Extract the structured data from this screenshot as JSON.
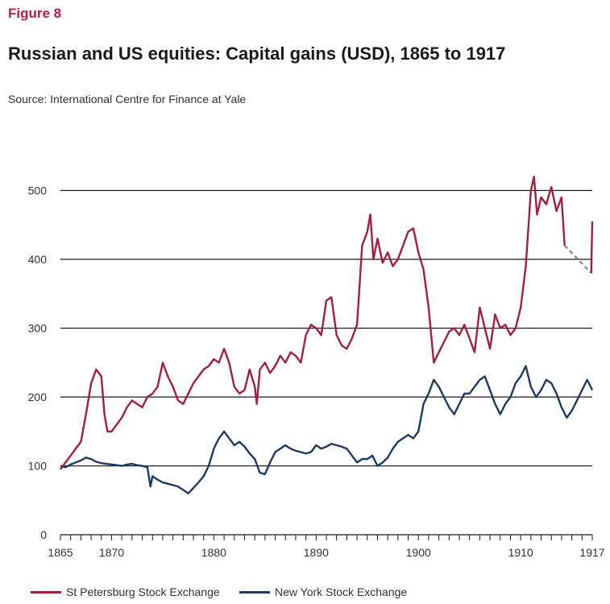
{
  "figure_label": "Figure 8",
  "title": "Russian and US equities: Capital gains (USD), 1865 to 1917",
  "source": "Source: International Centre for Finance at Yale",
  "colors": {
    "st_petersburg": "#a51f3c",
    "new_york": "#1d3a63",
    "gap": "#8a8a8a",
    "grid": "#1a1a1a"
  },
  "chart_data": {
    "type": "line",
    "xlim": [
      1865,
      1917
    ],
    "ylim": [
      0,
      550
    ],
    "y_ticks": [
      0,
      100,
      200,
      300,
      400,
      500
    ],
    "x_tick_labels": [
      "1865",
      "1870",
      "1880",
      "1890",
      "1900",
      "1910",
      "1917"
    ],
    "x_tick_values": [
      1865,
      1870,
      1880,
      1890,
      1900,
      1910,
      1917
    ],
    "grid": "horizontal",
    "legend_position": "bottom",
    "series": [
      {
        "name": "St Petersburg Stock Exchange",
        "x": [
          1865.0,
          1865.5,
          1866.0,
          1866.5,
          1867.0,
          1867.5,
          1868.0,
          1868.5,
          1869.0,
          1869.3,
          1869.6,
          1870.0,
          1870.5,
          1871.0,
          1871.5,
          1872.0,
          1872.5,
          1873.0,
          1873.5,
          1874.0,
          1874.5,
          1875.0,
          1875.5,
          1876.0,
          1876.5,
          1877.0,
          1877.5,
          1878.0,
          1878.5,
          1879.0,
          1879.5,
          1880.0,
          1880.5,
          1881.0,
          1881.5,
          1882.0,
          1882.5,
          1883.0,
          1883.5,
          1884.0,
          1884.2,
          1884.5,
          1885.0,
          1885.5,
          1886.0,
          1886.5,
          1887.0,
          1887.5,
          1888.0,
          1888.5,
          1889.0,
          1889.5,
          1890.0,
          1890.5,
          1891.0,
          1891.5,
          1892.0,
          1892.5,
          1893.0,
          1893.5,
          1894.0,
          1894.5,
          1895.0,
          1895.3,
          1895.6,
          1896.0,
          1896.5,
          1897.0,
          1897.5,
          1898.0,
          1898.5,
          1899.0,
          1899.5,
          1900.0,
          1900.5,
          1901.0,
          1901.5,
          1902.0,
          1902.5,
          1903.0,
          1903.5,
          1904.0,
          1904.5,
          1905.0,
          1905.5,
          1906.0,
          1906.5,
          1907.0,
          1907.5,
          1908.0,
          1908.5,
          1909.0,
          1909.5,
          1910.0,
          1910.5,
          1911.0,
          1911.3,
          1911.6,
          1912.0,
          1912.5,
          1913.0,
          1913.5,
          1914.0,
          1914.3
        ],
        "values": [
          95,
          105,
          115,
          125,
          135,
          175,
          220,
          240,
          230,
          175,
          150,
          150,
          160,
          170,
          185,
          195,
          190,
          185,
          200,
          205,
          215,
          250,
          230,
          215,
          195,
          190,
          205,
          220,
          230,
          240,
          245,
          255,
          250,
          270,
          250,
          215,
          205,
          210,
          240,
          215,
          190,
          240,
          250,
          235,
          245,
          260,
          250,
          265,
          260,
          250,
          290,
          305,
          300,
          290,
          340,
          345,
          290,
          275,
          270,
          285,
          305,
          420,
          440,
          465,
          400,
          430,
          395,
          410,
          390,
          400,
          420,
          440,
          445,
          410,
          385,
          330,
          250,
          265,
          280,
          295,
          300,
          290,
          305,
          285,
          265,
          330,
          300,
          270,
          320,
          300,
          305,
          290,
          300,
          330,
          390,
          500,
          520,
          465,
          490,
          480,
          505,
          470,
          490,
          420
        ],
        "gap": {
          "x": [
            1914.3,
            1916.9
          ],
          "values": [
            420,
            380
          ]
        },
        "tail": {
          "x": [
            1916.9,
            1917.0
          ],
          "values": [
            380,
            455
          ]
        }
      },
      {
        "name": "New York Stock Exchange",
        "x": [
          1865.0,
          1865.5,
          1866.0,
          1866.5,
          1867.0,
          1867.5,
          1868.0,
          1868.5,
          1869.0,
          1869.5,
          1870.0,
          1870.5,
          1871.0,
          1871.5,
          1872.0,
          1872.5,
          1873.0,
          1873.5,
          1873.8,
          1874.0,
          1874.5,
          1875.0,
          1875.5,
          1876.0,
          1876.5,
          1877.0,
          1877.5,
          1878.0,
          1878.5,
          1879.0,
          1879.5,
          1880.0,
          1880.5,
          1881.0,
          1881.5,
          1882.0,
          1882.5,
          1883.0,
          1883.5,
          1884.0,
          1884.5,
          1885.0,
          1885.5,
          1886.0,
          1886.5,
          1887.0,
          1887.5,
          1888.0,
          1888.5,
          1889.0,
          1889.5,
          1890.0,
          1890.5,
          1891.0,
          1891.5,
          1892.0,
          1892.5,
          1893.0,
          1893.5,
          1894.0,
          1894.5,
          1895.0,
          1895.5,
          1896.0,
          1896.5,
          1897.0,
          1897.5,
          1898.0,
          1898.5,
          1899.0,
          1899.5,
          1900.0,
          1900.5,
          1901.0,
          1901.5,
          1902.0,
          1902.5,
          1903.0,
          1903.5,
          1904.0,
          1904.5,
          1905.0,
          1905.5,
          1906.0,
          1906.5,
          1907.0,
          1907.5,
          1908.0,
          1908.5,
          1909.0,
          1909.5,
          1910.0,
          1910.5,
          1911.0,
          1911.5,
          1912.0,
          1912.5,
          1913.0,
          1913.5,
          1914.0,
          1914.5,
          1915.0,
          1915.5,
          1916.0,
          1916.5,
          1917.0
        ],
        "values": [
          100,
          98,
          102,
          105,
          108,
          112,
          110,
          106,
          104,
          103,
          102,
          101,
          100,
          102,
          103,
          101,
          100,
          98,
          70,
          85,
          80,
          76,
          74,
          72,
          70,
          65,
          60,
          68,
          76,
          85,
          100,
          125,
          140,
          150,
          140,
          130,
          135,
          128,
          118,
          110,
          90,
          88,
          105,
          120,
          125,
          130,
          125,
          122,
          120,
          118,
          120,
          130,
          125,
          128,
          132,
          130,
          128,
          125,
          115,
          105,
          110,
          110,
          115,
          100,
          105,
          112,
          125,
          135,
          140,
          145,
          140,
          150,
          190,
          205,
          225,
          215,
          200,
          185,
          175,
          190,
          205,
          205,
          215,
          225,
          230,
          210,
          190,
          175,
          190,
          200,
          220,
          230,
          245,
          215,
          200,
          210,
          225,
          220,
          205,
          185,
          170,
          180,
          195,
          210,
          225,
          210
        ]
      }
    ]
  },
  "legend": {
    "st_petersburg_label": "St Petersburg Stock Exchange",
    "new_york_label": "New York Stock Exchange"
  }
}
